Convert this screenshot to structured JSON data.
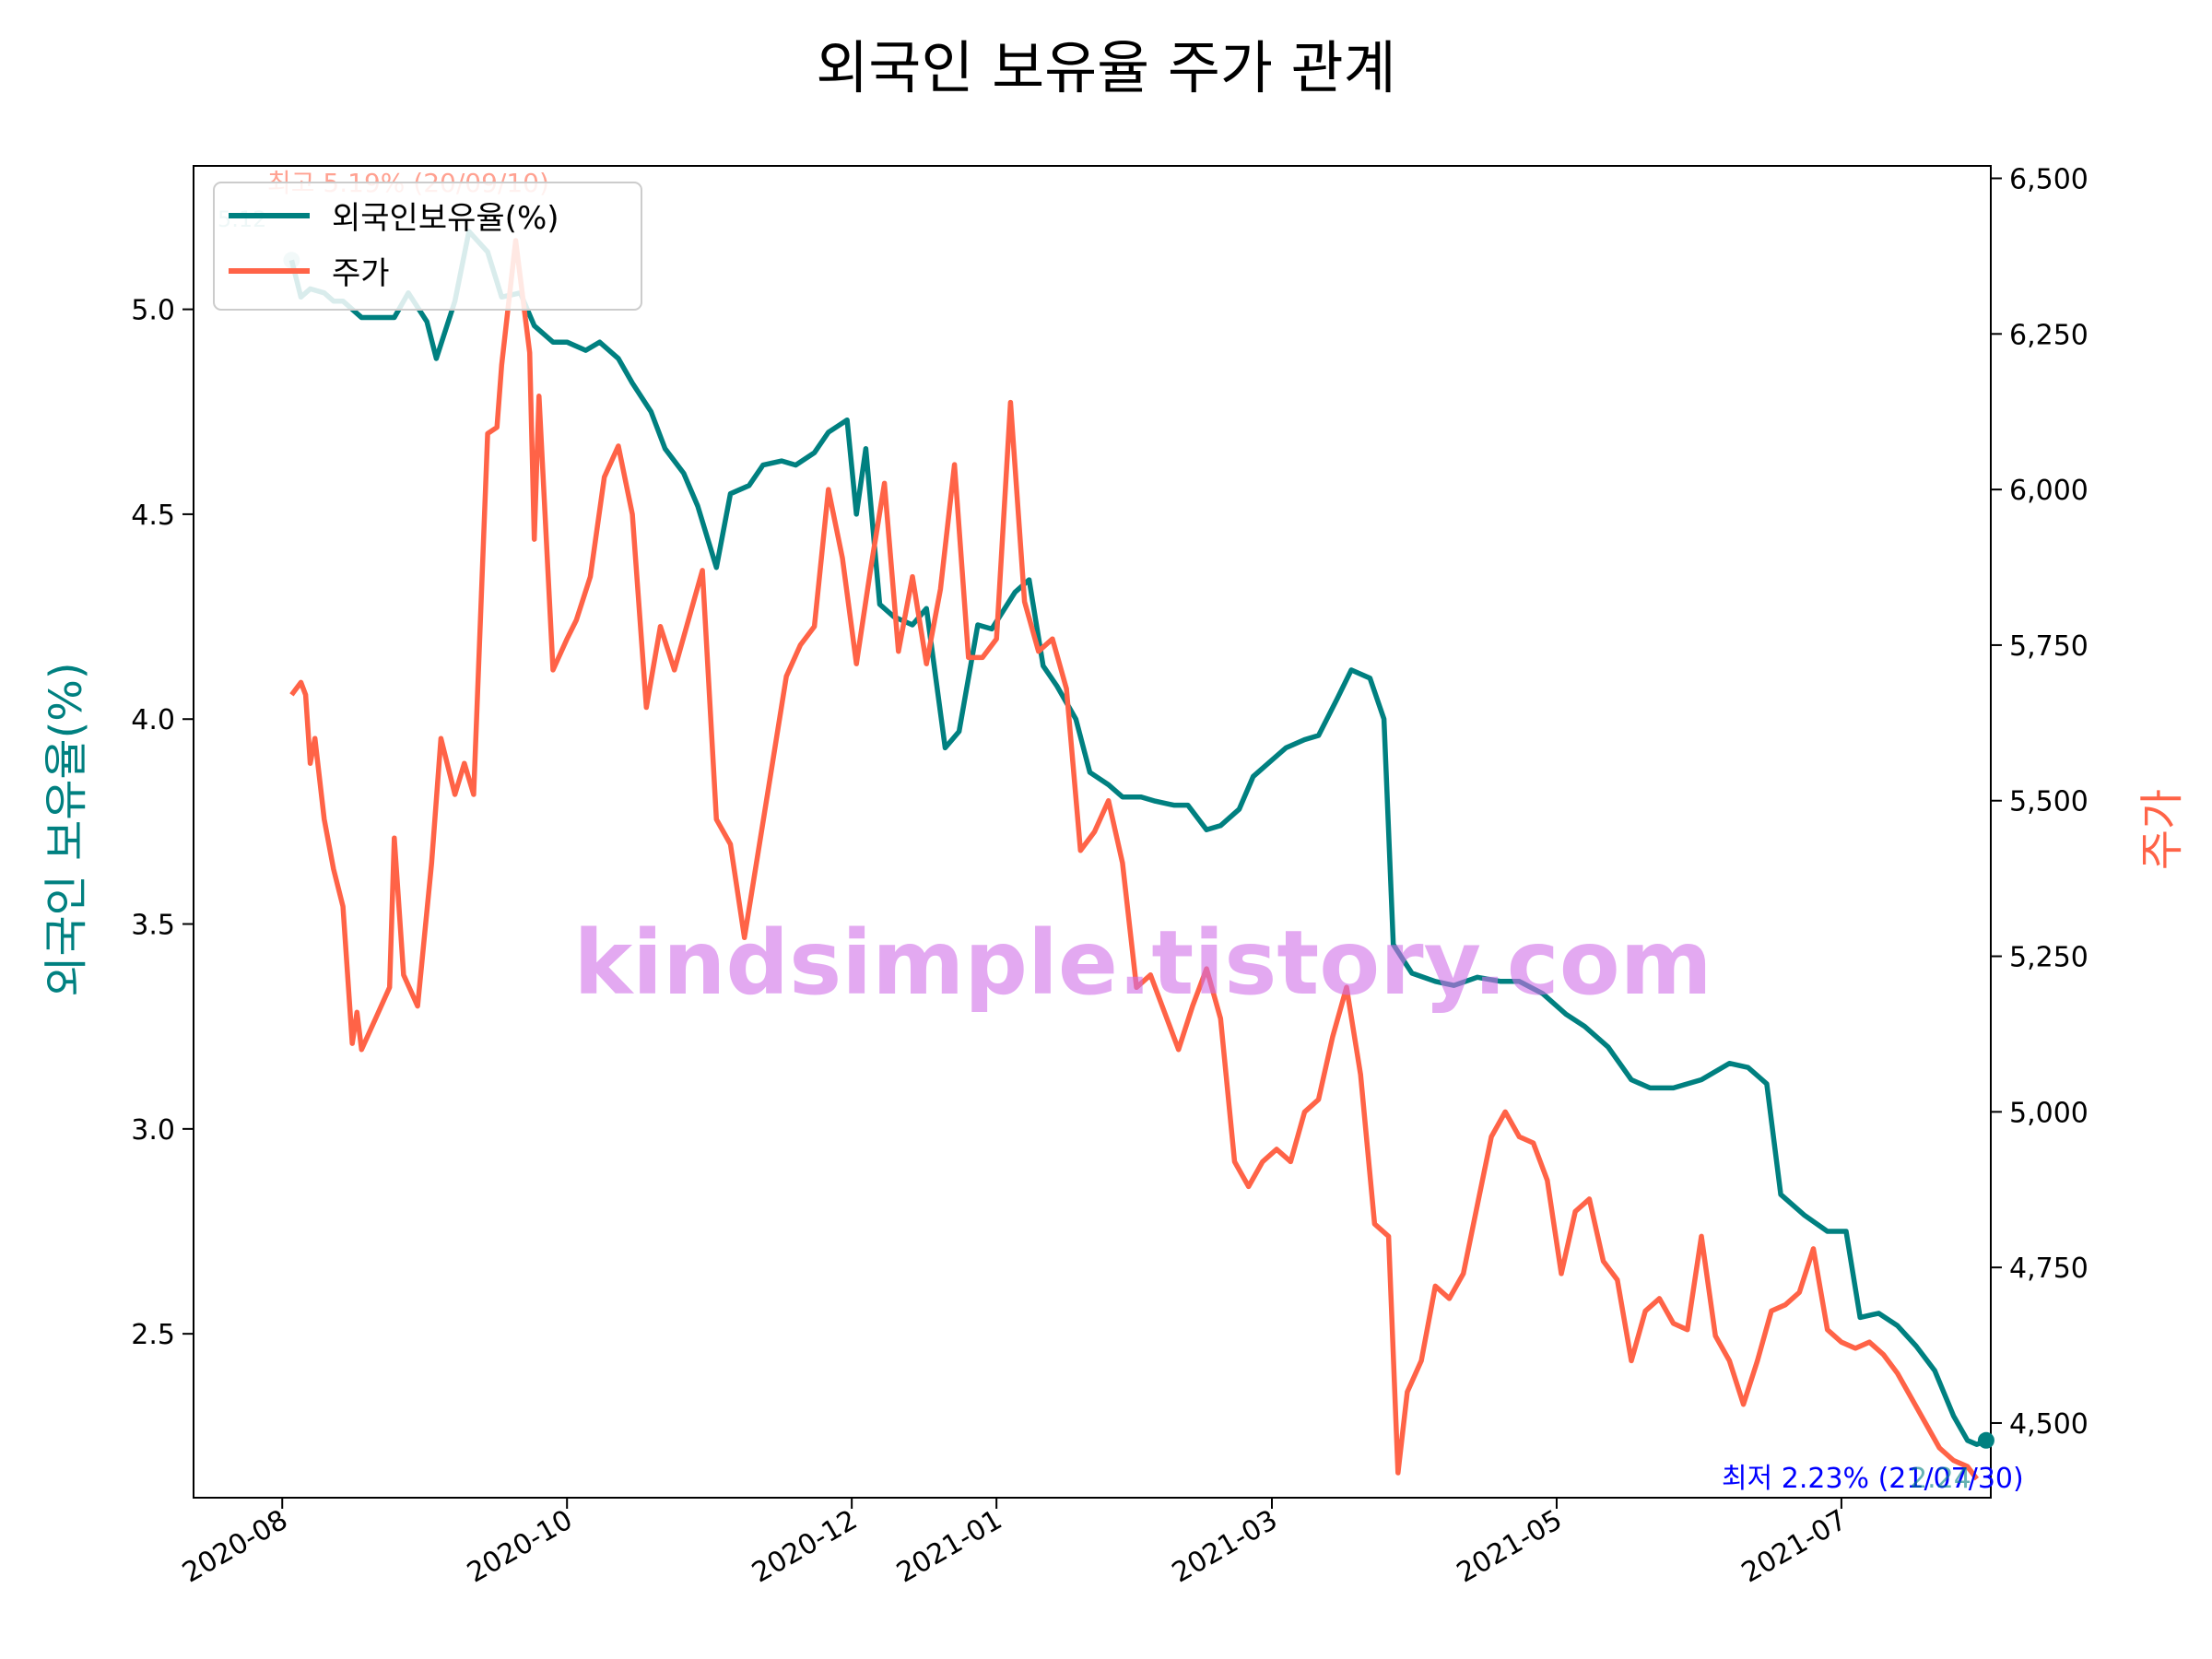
{
  "colors": {
    "ratio": "#008080",
    "price": "#ff6347",
    "annot_low": "#0000ff",
    "watermark": "#d070e8"
  },
  "chart_data": {
    "type": "line",
    "title": "외국인 보유율 주가 관계",
    "watermark": "kindsimple.tistory.com",
    "xlabel": "",
    "ylabel_left": "외국인 보유율(%)",
    "ylabel_right": "주가",
    "x_ticks": [
      "2020-08",
      "2020-10",
      "2020-12",
      "2021-01",
      "2021-03",
      "2021-05",
      "2021-07"
    ],
    "y_left_ticks": [
      "2.5",
      "3.0",
      "3.5",
      "4.0",
      "4.5",
      "5.0"
    ],
    "y_right_ticks": [
      "4,500",
      "4,750",
      "5,000",
      "5,250",
      "5,500",
      "5,750",
      "6,000",
      "6,250",
      "6,500"
    ],
    "y_left_lim": [
      2.1,
      5.35
    ],
    "y_right_lim": [
      4380,
      6520
    ],
    "x_lim": [
      "2020-07-13",
      "2021-08-02"
    ],
    "legend": {
      "position": "upper-left",
      "entries": [
        "외국인보유율(%)",
        "주가"
      ]
    },
    "annotations": {
      "high": "최고 5.19% (20/09/10)",
      "start_value": "5.12",
      "low": "최저 2.23% (21/07/30)",
      "end_value": "2.24"
    },
    "series": [
      {
        "name": "외국인보유율(%)",
        "axis": "left",
        "points": [
          [
            "2020-08-03",
            5.12
          ],
          [
            "2020-08-05",
            5.03
          ],
          [
            "2020-08-07",
            5.05
          ],
          [
            "2020-08-10",
            5.04
          ],
          [
            "2020-08-12",
            5.02
          ],
          [
            "2020-08-14",
            5.02
          ],
          [
            "2020-08-18",
            4.98
          ],
          [
            "2020-08-21",
            4.98
          ],
          [
            "2020-08-25",
            4.98
          ],
          [
            "2020-08-28",
            5.04
          ],
          [
            "2020-09-01",
            4.97
          ],
          [
            "2020-09-03",
            4.88
          ],
          [
            "2020-09-07",
            5.02
          ],
          [
            "2020-09-10",
            5.19
          ],
          [
            "2020-09-14",
            5.14
          ],
          [
            "2020-09-17",
            5.03
          ],
          [
            "2020-09-21",
            5.04
          ],
          [
            "2020-09-24",
            4.96
          ],
          [
            "2020-09-28",
            4.92
          ],
          [
            "2020-10-01",
            4.92
          ],
          [
            "2020-10-05",
            4.9
          ],
          [
            "2020-10-08",
            4.92
          ],
          [
            "2020-10-12",
            4.88
          ],
          [
            "2020-10-15",
            4.82
          ],
          [
            "2020-10-19",
            4.75
          ],
          [
            "2020-10-22",
            4.66
          ],
          [
            "2020-10-26",
            4.6
          ],
          [
            "2020-10-29",
            4.52
          ],
          [
            "2020-11-02",
            4.37
          ],
          [
            "2020-11-05",
            4.55
          ],
          [
            "2020-11-09",
            4.57
          ],
          [
            "2020-11-12",
            4.62
          ],
          [
            "2020-11-16",
            4.63
          ],
          [
            "2020-11-19",
            4.62
          ],
          [
            "2020-11-23",
            4.65
          ],
          [
            "2020-11-26",
            4.7
          ],
          [
            "2020-11-30",
            4.73
          ],
          [
            "2020-12-02",
            4.5
          ],
          [
            "2020-12-04",
            4.66
          ],
          [
            "2020-12-07",
            4.28
          ],
          [
            "2020-12-10",
            4.25
          ],
          [
            "2020-12-14",
            4.23
          ],
          [
            "2020-12-17",
            4.27
          ],
          [
            "2020-12-21",
            3.93
          ],
          [
            "2020-12-24",
            3.97
          ],
          [
            "2020-12-28",
            4.23
          ],
          [
            "2020-12-31",
            4.22
          ],
          [
            "2021-01-05",
            4.31
          ],
          [
            "2021-01-08",
            4.34
          ],
          [
            "2021-01-11",
            4.13
          ],
          [
            "2021-01-14",
            4.08
          ],
          [
            "2021-01-18",
            4.0
          ],
          [
            "2021-01-21",
            3.87
          ],
          [
            "2021-01-25",
            3.84
          ],
          [
            "2021-01-28",
            3.81
          ],
          [
            "2021-02-01",
            3.81
          ],
          [
            "2021-02-04",
            3.8
          ],
          [
            "2021-02-08",
            3.79
          ],
          [
            "2021-02-11",
            3.79
          ],
          [
            "2021-02-15",
            3.73
          ],
          [
            "2021-02-18",
            3.74
          ],
          [
            "2021-02-22",
            3.78
          ],
          [
            "2021-02-25",
            3.86
          ],
          [
            "2021-03-01",
            3.9
          ],
          [
            "2021-03-04",
            3.93
          ],
          [
            "2021-03-08",
            3.95
          ],
          [
            "2021-03-11",
            3.96
          ],
          [
            "2021-03-15",
            4.05
          ],
          [
            "2021-03-18",
            4.12
          ],
          [
            "2021-03-22",
            4.1
          ],
          [
            "2021-03-25",
            4.0
          ],
          [
            "2021-03-27",
            3.45
          ],
          [
            "2021-03-31",
            3.38
          ],
          [
            "2021-04-05",
            3.36
          ],
          [
            "2021-04-09",
            3.35
          ],
          [
            "2021-04-14",
            3.37
          ],
          [
            "2021-04-19",
            3.36
          ],
          [
            "2021-04-23",
            3.36
          ],
          [
            "2021-04-28",
            3.33
          ],
          [
            "2021-05-03",
            3.28
          ],
          [
            "2021-05-07",
            3.25
          ],
          [
            "2021-05-12",
            3.2
          ],
          [
            "2021-05-17",
            3.12
          ],
          [
            "2021-05-21",
            3.1
          ],
          [
            "2021-05-26",
            3.1
          ],
          [
            "2021-06-01",
            3.12
          ],
          [
            "2021-06-04",
            3.14
          ],
          [
            "2021-06-07",
            3.16
          ],
          [
            "2021-06-11",
            3.15
          ],
          [
            "2021-06-15",
            3.11
          ],
          [
            "2021-06-18",
            2.84
          ],
          [
            "2021-06-23",
            2.79
          ],
          [
            "2021-06-28",
            2.75
          ],
          [
            "2021-07-02",
            2.75
          ],
          [
            "2021-07-05",
            2.54
          ],
          [
            "2021-07-09",
            2.55
          ],
          [
            "2021-07-13",
            2.52
          ],
          [
            "2021-07-17",
            2.47
          ],
          [
            "2021-07-21",
            2.41
          ],
          [
            "2021-07-25",
            2.3
          ],
          [
            "2021-07-28",
            2.24
          ],
          [
            "2021-07-30",
            2.23
          ],
          [
            "2021-08-01",
            2.24
          ]
        ]
      },
      {
        "name": "주가",
        "axis": "right",
        "points": [
          [
            "2020-08-03",
            5670
          ],
          [
            "2020-08-05",
            5690
          ],
          [
            "2020-08-06",
            5670
          ],
          [
            "2020-08-07",
            5560
          ],
          [
            "2020-08-08",
            5600
          ],
          [
            "2020-08-10",
            5470
          ],
          [
            "2020-08-12",
            5390
          ],
          [
            "2020-08-14",
            5330
          ],
          [
            "2020-08-16",
            5110
          ],
          [
            "2020-08-17",
            5160
          ],
          [
            "2020-08-18",
            5100
          ],
          [
            "2020-08-21",
            5150
          ],
          [
            "2020-08-24",
            5200
          ],
          [
            "2020-08-25",
            5440
          ],
          [
            "2020-08-27",
            5220
          ],
          [
            "2020-08-30",
            5170
          ],
          [
            "2020-09-02",
            5400
          ],
          [
            "2020-09-04",
            5600
          ],
          [
            "2020-09-07",
            5510
          ],
          [
            "2020-09-09",
            5560
          ],
          [
            "2020-09-11",
            5510
          ],
          [
            "2020-09-14",
            6090
          ],
          [
            "2020-09-16",
            6100
          ],
          [
            "2020-09-17",
            6200
          ],
          [
            "2020-09-20",
            6400
          ],
          [
            "2020-09-23",
            6220
          ],
          [
            "2020-09-24",
            5920
          ],
          [
            "2020-09-25",
            6150
          ],
          [
            "2020-09-28",
            5710
          ],
          [
            "2020-10-01",
            5760
          ],
          [
            "2020-10-03",
            5790
          ],
          [
            "2020-10-06",
            5860
          ],
          [
            "2020-10-09",
            6020
          ],
          [
            "2020-10-12",
            6070
          ],
          [
            "2020-10-15",
            5960
          ],
          [
            "2020-10-18",
            5650
          ],
          [
            "2020-10-21",
            5780
          ],
          [
            "2020-10-24",
            5710
          ],
          [
            "2020-10-27",
            5790
          ],
          [
            "2020-10-30",
            5870
          ],
          [
            "2020-11-02",
            5470
          ],
          [
            "2020-11-05",
            5430
          ],
          [
            "2020-11-08",
            5280
          ],
          [
            "2020-11-11",
            5420
          ],
          [
            "2020-11-14",
            5560
          ],
          [
            "2020-11-17",
            5700
          ],
          [
            "2020-11-20",
            5750
          ],
          [
            "2020-11-23",
            5780
          ],
          [
            "2020-11-26",
            6000
          ],
          [
            "2020-11-29",
            5890
          ],
          [
            "2020-12-02",
            5720
          ],
          [
            "2020-12-05",
            5870
          ],
          [
            "2020-12-08",
            6010
          ],
          [
            "2020-12-11",
            5740
          ],
          [
            "2020-12-14",
            5860
          ],
          [
            "2020-12-17",
            5720
          ],
          [
            "2020-12-20",
            5840
          ],
          [
            "2020-12-23",
            6040
          ],
          [
            "2020-12-26",
            5730
          ],
          [
            "2020-12-29",
            5730
          ],
          [
            "2021-01-01",
            5760
          ],
          [
            "2021-01-04",
            6140
          ],
          [
            "2021-01-07",
            5820
          ],
          [
            "2021-01-10",
            5740
          ],
          [
            "2021-01-13",
            5760
          ],
          [
            "2021-01-16",
            5680
          ],
          [
            "2021-01-19",
            5420
          ],
          [
            "2021-01-22",
            5450
          ],
          [
            "2021-01-25",
            5500
          ],
          [
            "2021-01-28",
            5400
          ],
          [
            "2021-01-31",
            5200
          ],
          [
            "2021-02-03",
            5220
          ],
          [
            "2021-02-06",
            5160
          ],
          [
            "2021-02-09",
            5100
          ],
          [
            "2021-02-12",
            5170
          ],
          [
            "2021-02-15",
            5230
          ],
          [
            "2021-02-18",
            5150
          ],
          [
            "2021-02-21",
            4920
          ],
          [
            "2021-02-24",
            4880
          ],
          [
            "2021-02-27",
            4920
          ],
          [
            "2021-03-02",
            4940
          ],
          [
            "2021-03-05",
            4920
          ],
          [
            "2021-03-08",
            5000
          ],
          [
            "2021-03-11",
            5020
          ],
          [
            "2021-03-14",
            5120
          ],
          [
            "2021-03-17",
            5200
          ],
          [
            "2021-03-20",
            5060
          ],
          [
            "2021-03-23",
            4820
          ],
          [
            "2021-03-26",
            4800
          ],
          [
            "2021-03-28",
            4420
          ],
          [
            "2021-03-30",
            4550
          ],
          [
            "2021-04-02",
            4600
          ],
          [
            "2021-04-05",
            4720
          ],
          [
            "2021-04-08",
            4700
          ],
          [
            "2021-04-11",
            4740
          ],
          [
            "2021-04-14",
            4850
          ],
          [
            "2021-04-17",
            4960
          ],
          [
            "2021-04-20",
            5000
          ],
          [
            "2021-04-23",
            4960
          ],
          [
            "2021-04-26",
            4950
          ],
          [
            "2021-04-29",
            4890
          ],
          [
            "2021-05-02",
            4740
          ],
          [
            "2021-05-05",
            4840
          ],
          [
            "2021-05-08",
            4860
          ],
          [
            "2021-05-11",
            4760
          ],
          [
            "2021-05-14",
            4730
          ],
          [
            "2021-05-17",
            4600
          ],
          [
            "2021-05-20",
            4680
          ],
          [
            "2021-05-23",
            4700
          ],
          [
            "2021-05-26",
            4660
          ],
          [
            "2021-05-29",
            4650
          ],
          [
            "2021-06-01",
            4800
          ],
          [
            "2021-06-04",
            4640
          ],
          [
            "2021-06-07",
            4600
          ],
          [
            "2021-06-10",
            4530
          ],
          [
            "2021-06-13",
            4600
          ],
          [
            "2021-06-16",
            4680
          ],
          [
            "2021-06-19",
            4690
          ],
          [
            "2021-06-22",
            4710
          ],
          [
            "2021-06-25",
            4780
          ],
          [
            "2021-06-28",
            4650
          ],
          [
            "2021-07-01",
            4630
          ],
          [
            "2021-07-04",
            4620
          ],
          [
            "2021-07-07",
            4630
          ],
          [
            "2021-07-10",
            4610
          ],
          [
            "2021-07-13",
            4580
          ],
          [
            "2021-07-16",
            4540
          ],
          [
            "2021-07-19",
            4500
          ],
          [
            "2021-07-22",
            4460
          ],
          [
            "2021-07-25",
            4440
          ],
          [
            "2021-07-28",
            4430
          ],
          [
            "2021-07-30",
            4410
          ]
        ]
      }
    ]
  }
}
